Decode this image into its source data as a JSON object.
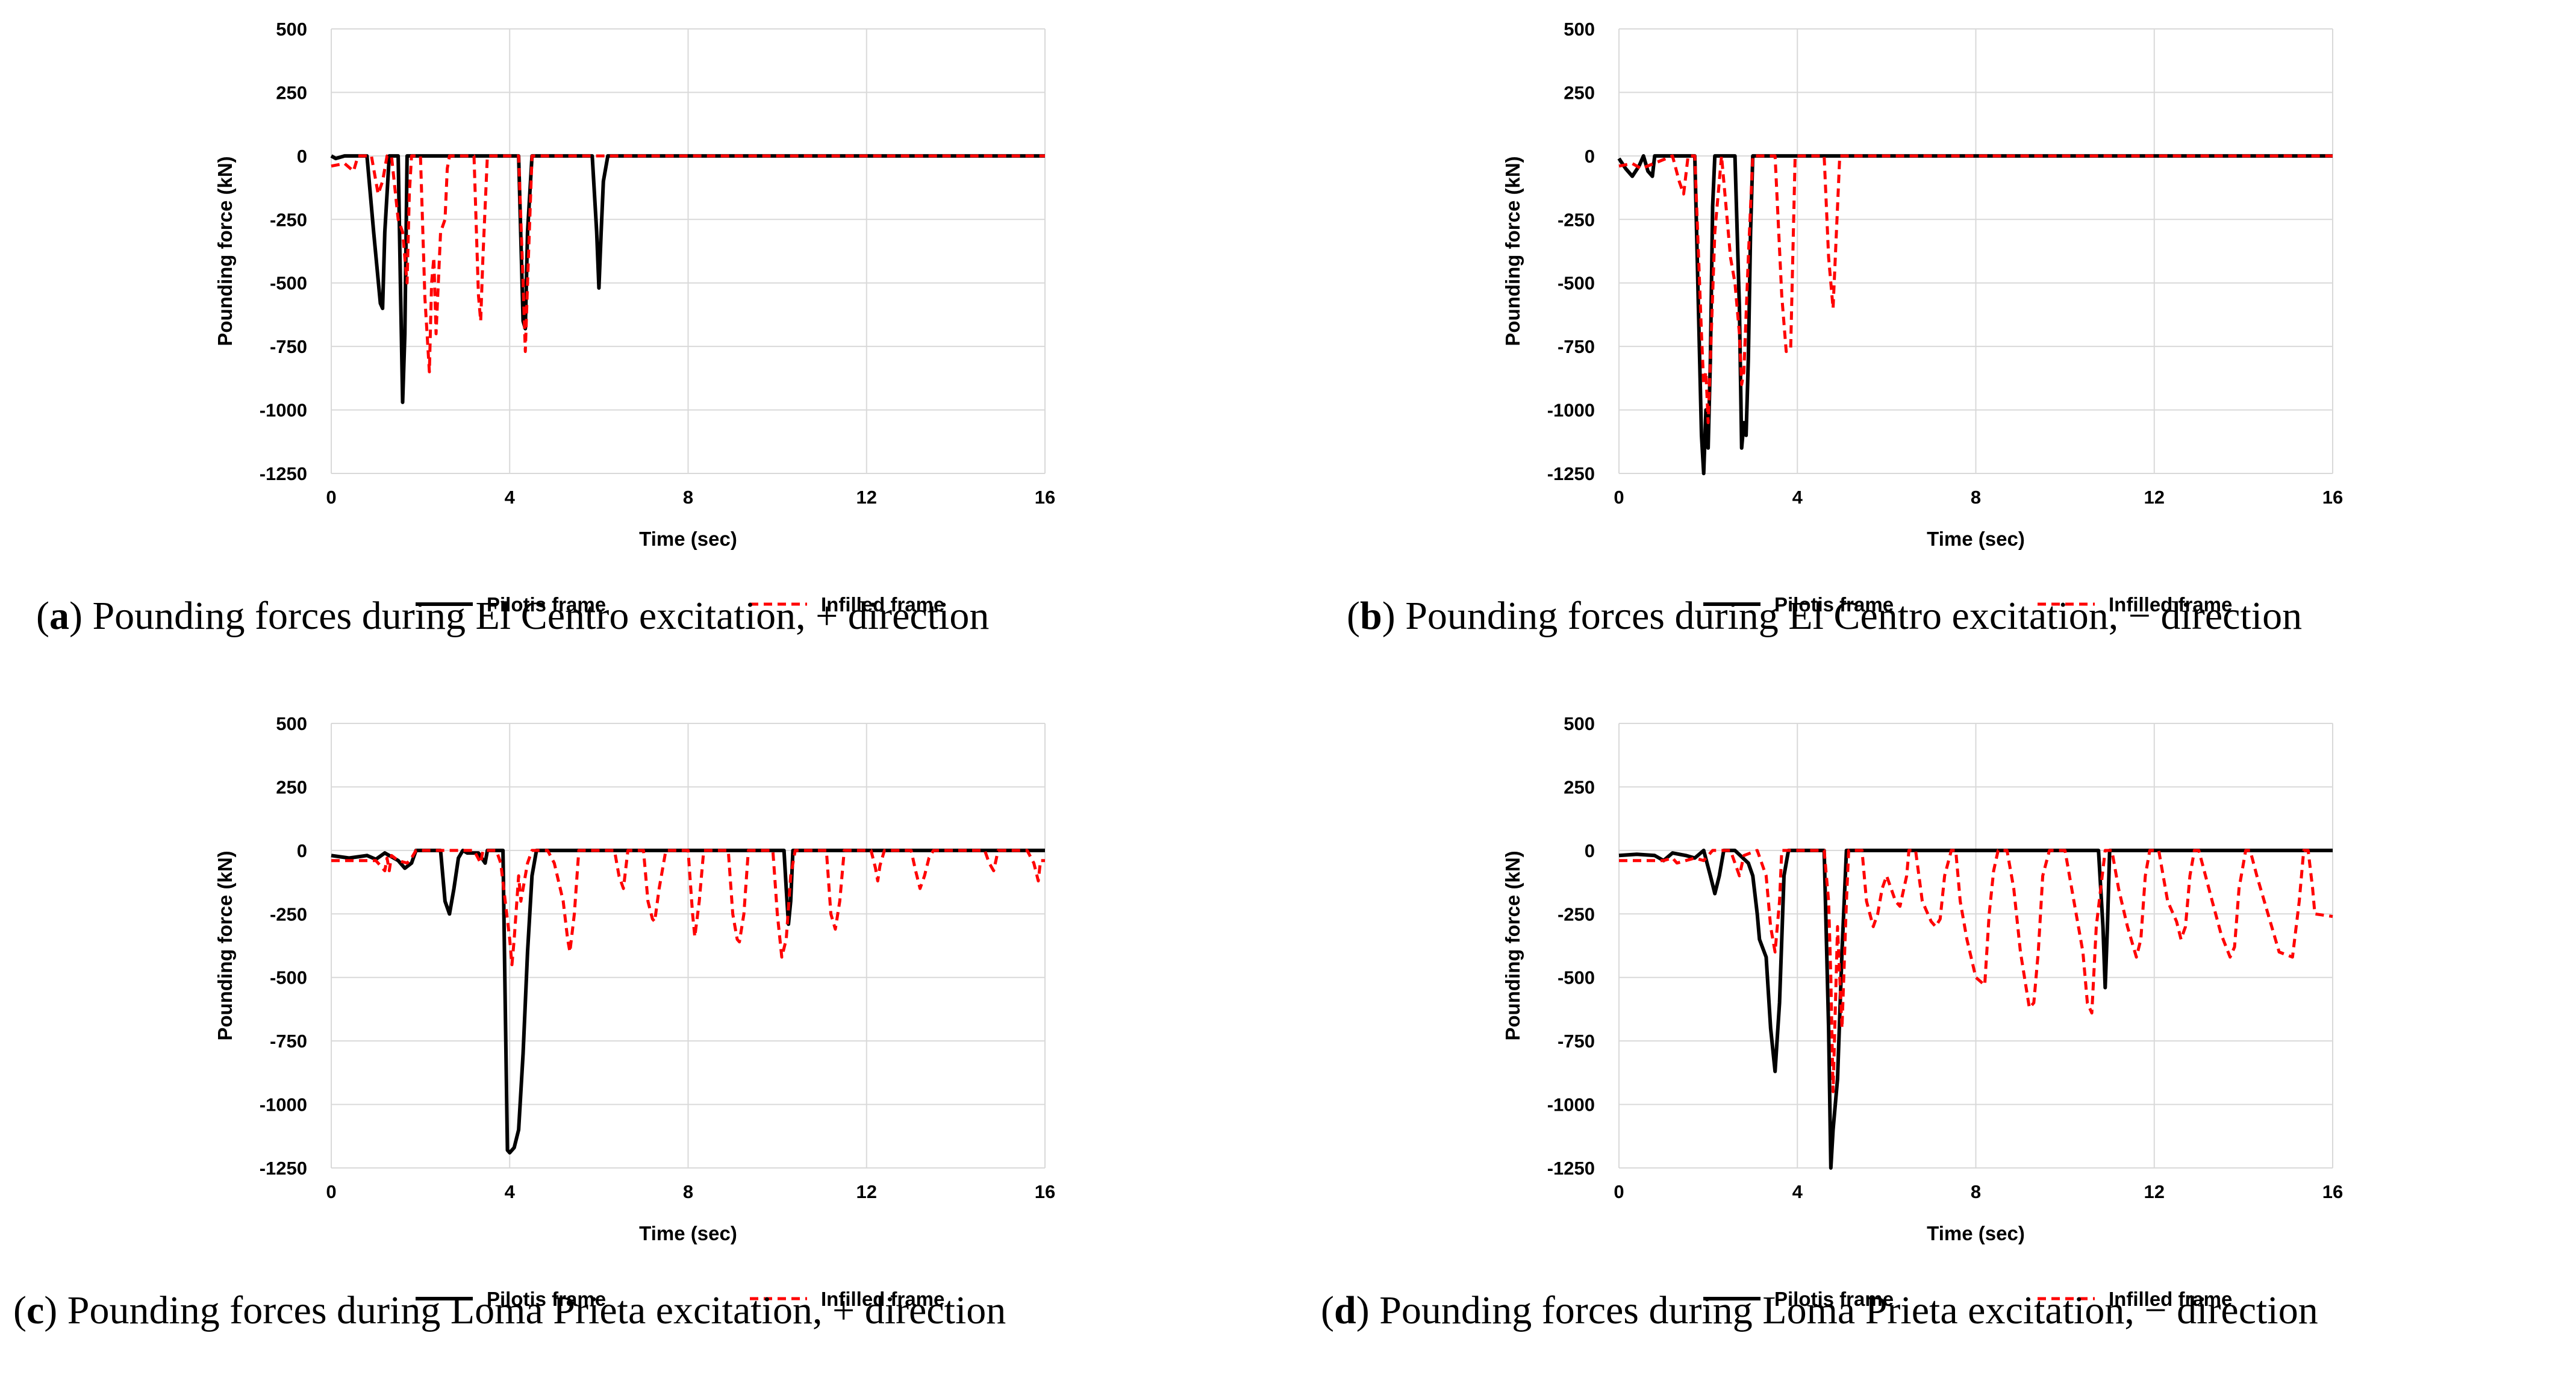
{
  "chart_data": [
    {
      "type": "line",
      "panel_letter": "a",
      "caption_text": " Pounding forces during El Centro excitation, + direction",
      "xlabel": "Time (sec)",
      "ylabel": "Pounding force (kN)",
      "xlim": [
        0,
        16
      ],
      "ylim": [
        -1250,
        500
      ],
      "xticks": [
        0,
        4,
        8,
        12,
        16
      ],
      "yticks": [
        500,
        250,
        0,
        -250,
        -500,
        -750,
        -1000,
        -1250
      ],
      "grid": true,
      "legend_position": "bottom",
      "series": [
        {
          "name": "Pilotis frame",
          "color": "#000000",
          "style": "solid",
          "x": [
            0,
            0.1,
            0.3,
            0.8,
            0.95,
            1.1,
            1.15,
            1.2,
            1.3,
            1.5,
            1.55,
            1.6,
            1.65,
            1.7,
            2.0,
            4.2,
            4.3,
            4.35,
            4.4,
            4.5,
            5.85,
            5.95,
            6.0,
            6.05,
            6.1,
            6.2,
            16
          ],
          "y": [
            0,
            -10,
            0,
            0,
            -300,
            -580,
            -600,
            -300,
            0,
            0,
            -500,
            -970,
            -700,
            0,
            0,
            0,
            -650,
            -680,
            -300,
            0,
            0,
            -300,
            -520,
            -300,
            -100,
            0,
            0
          ]
        },
        {
          "name": "Infilled frame",
          "color": "#ff0000",
          "style": "dashed",
          "x": [
            0,
            0.3,
            0.5,
            0.6,
            0.9,
            1.05,
            1.15,
            1.25,
            1.35,
            1.5,
            1.6,
            1.7,
            1.75,
            1.8,
            2.0,
            2.1,
            2.2,
            2.25,
            2.3,
            2.35,
            2.45,
            2.55,
            2.6,
            2.65,
            3.2,
            3.3,
            3.35,
            3.4,
            3.5,
            4.2,
            4.3,
            4.35,
            4.4,
            4.5,
            16
          ],
          "y": [
            -40,
            -30,
            -60,
            0,
            0,
            -150,
            -100,
            0,
            0,
            -250,
            -300,
            -500,
            -150,
            0,
            0,
            -560,
            -850,
            -500,
            -400,
            -700,
            -300,
            -250,
            -50,
            0,
            0,
            -550,
            -650,
            -400,
            0,
            0,
            -500,
            -770,
            -500,
            0,
            0
          ]
        }
      ]
    },
    {
      "type": "line",
      "panel_letter": "b",
      "caption_text": " Pounding forces during El Centro excitation, − direction",
      "xlabel": "Time (sec)",
      "ylabel": "Pounding force (kN)",
      "xlim": [
        0,
        16
      ],
      "ylim": [
        -1250,
        500
      ],
      "xticks": [
        0,
        4,
        8,
        12,
        16
      ],
      "yticks": [
        500,
        250,
        0,
        -250,
        -500,
        -750,
        -1000,
        -1250
      ],
      "grid": true,
      "legend_position": "bottom",
      "series": [
        {
          "name": "Pilotis frame",
          "color": "#000000",
          "style": "solid",
          "x": [
            0,
            0.15,
            0.3,
            0.45,
            0.55,
            0.65,
            0.75,
            0.8,
            1.7,
            1.85,
            1.9,
            1.95,
            2.0,
            2.05,
            2.1,
            2.15,
            2.2,
            2.6,
            2.7,
            2.75,
            2.8,
            2.85,
            2.9,
            2.95,
            3.0,
            16
          ],
          "y": [
            -10,
            -50,
            -80,
            -40,
            0,
            -60,
            -80,
            0,
            0,
            -1100,
            -1250,
            -1000,
            -1150,
            -800,
            -200,
            0,
            0,
            0,
            -600,
            -1150,
            -1050,
            -1100,
            -800,
            -300,
            0,
            0
          ]
        },
        {
          "name": "Infilled frame",
          "color": "#ff0000",
          "style": "dashed",
          "x": [
            0,
            0.3,
            0.5,
            1.2,
            1.35,
            1.45,
            1.55,
            1.7,
            1.85,
            1.9,
            1.95,
            2.0,
            2.05,
            2.15,
            2.3,
            2.4,
            2.5,
            2.6,
            2.7,
            2.75,
            2.8,
            2.9,
            3.0,
            3.5,
            3.65,
            3.75,
            3.85,
            3.95,
            4.6,
            4.7,
            4.8,
            4.85,
            4.95,
            16
          ],
          "y": [
            -40,
            -30,
            -50,
            0,
            -100,
            -150,
            0,
            0,
            -700,
            -900,
            -850,
            -1050,
            -800,
            -300,
            0,
            -200,
            -400,
            -500,
            -700,
            -900,
            -850,
            -400,
            0,
            0,
            -550,
            -770,
            -760,
            0,
            0,
            -400,
            -600,
            -400,
            0,
            0
          ]
        }
      ]
    },
    {
      "type": "line",
      "panel_letter": "c",
      "caption_text": " Pounding forces during Loma Prieta excitation, + direction",
      "xlabel": "Time (sec)",
      "ylabel": "Pounding force (kN)",
      "xlim": [
        0,
        16
      ],
      "ylim": [
        -1250,
        500
      ],
      "xticks": [
        0,
        4,
        8,
        12,
        16
      ],
      "yticks": [
        500,
        250,
        0,
        -250,
        -500,
        -750,
        -1000,
        -1250
      ],
      "grid": true,
      "legend_position": "bottom",
      "series": [
        {
          "name": "Pilotis frame",
          "color": "#000000",
          "style": "solid",
          "x": [
            0,
            0.4,
            0.8,
            1.0,
            1.2,
            1.5,
            1.65,
            1.8,
            1.9,
            2.45,
            2.55,
            2.65,
            2.75,
            2.85,
            2.95,
            3.05,
            3.3,
            3.45,
            3.5,
            3.85,
            3.9,
            3.95,
            4.0,
            4.1,
            4.2,
            4.3,
            4.4,
            4.5,
            4.6,
            10.15,
            10.2,
            10.25,
            10.3,
            10.35,
            16
          ],
          "y": [
            -20,
            -30,
            -20,
            -35,
            -10,
            -40,
            -70,
            -50,
            0,
            0,
            -200,
            -250,
            -150,
            -30,
            0,
            -10,
            -10,
            -50,
            0,
            0,
            -600,
            -1180,
            -1190,
            -1170,
            -1100,
            -800,
            -400,
            -100,
            0,
            0,
            -150,
            -290,
            -200,
            0,
            0
          ]
        },
        {
          "name": "Infilled frame",
          "color": "#ff0000",
          "style": "dashed",
          "x": [
            0,
            1.0,
            1.2,
            1.25,
            1.3,
            1.35,
            1.5,
            1.7,
            1.8,
            1.9,
            2.0,
            2.5,
            3.2,
            3.35,
            3.4,
            3.7,
            3.8,
            4.0,
            4.05,
            4.1,
            4.2,
            4.25,
            4.3,
            4.4,
            4.5,
            4.85,
            5.0,
            5.2,
            5.3,
            5.35,
            5.45,
            5.55,
            6.35,
            6.45,
            6.55,
            6.65,
            7.0,
            7.1,
            7.2,
            7.25,
            7.35,
            7.5,
            8.0,
            8.1,
            8.15,
            8.25,
            8.35,
            8.9,
            9.0,
            9.1,
            9.15,
            9.25,
            9.35,
            9.9,
            10.0,
            10.1,
            10.2,
            10.3,
            10.4,
            11.1,
            11.2,
            11.3,
            11.4,
            11.5,
            12.1,
            12.2,
            12.25,
            12.3,
            12.4,
            13.0,
            13.1,
            13.2,
            13.3,
            13.4,
            13.5,
            14.65,
            14.75,
            14.85,
            14.95,
            15.6,
            15.75,
            15.85,
            15.9,
            16
          ],
          "y": [
            -40,
            -40,
            -80,
            -30,
            -80,
            -20,
            -40,
            -50,
            -30,
            0,
            0,
            0,
            0,
            -50,
            0,
            0,
            -50,
            -350,
            -450,
            -350,
            -100,
            -200,
            -150,
            -50,
            0,
            0,
            -50,
            -200,
            -350,
            -400,
            -250,
            0,
            0,
            -100,
            -150,
            0,
            0,
            -200,
            -270,
            -280,
            -150,
            0,
            0,
            -250,
            -340,
            -200,
            0,
            0,
            -250,
            -350,
            -360,
            -250,
            0,
            0,
            -250,
            -420,
            -350,
            -100,
            0,
            0,
            -250,
            -310,
            -200,
            0,
            0,
            -70,
            -120,
            -60,
            0,
            0,
            -80,
            -150,
            -100,
            -30,
            0,
            0,
            -50,
            -80,
            0,
            0,
            -50,
            -120,
            -40,
            -40
          ]
        }
      ]
    },
    {
      "type": "line",
      "panel_letter": "d",
      "caption_text": " Pounding forces during Loma Prieta excitation, − direction",
      "xlabel": "Time (sec)",
      "ylabel": "Pounding force (kN)",
      "xlim": [
        0,
        16
      ],
      "ylim": [
        -1250,
        500
      ],
      "xticks": [
        0,
        4,
        8,
        12,
        16
      ],
      "yticks": [
        500,
        250,
        0,
        -250,
        -500,
        -750,
        -1000,
        -1250
      ],
      "grid": true,
      "legend_position": "bottom",
      "series": [
        {
          "name": "Pilotis frame",
          "color": "#000000",
          "style": "solid",
          "x": [
            0,
            0.4,
            0.8,
            1.0,
            1.2,
            1.5,
            1.7,
            1.9,
            2.05,
            2.15,
            2.25,
            2.35,
            2.6,
            2.9,
            3.0,
            3.1,
            3.15,
            3.3,
            3.4,
            3.5,
            3.6,
            3.7,
            3.8,
            4.6,
            4.7,
            4.75,
            4.8,
            4.9,
            5.0,
            5.1,
            10.75,
            10.85,
            10.9,
            10.95,
            11.0,
            16
          ],
          "y": [
            -20,
            -15,
            -20,
            -40,
            -10,
            -20,
            -30,
            0,
            -100,
            -170,
            -100,
            0,
            0,
            -50,
            -100,
            -250,
            -350,
            -420,
            -700,
            -870,
            -600,
            -100,
            0,
            0,
            -700,
            -1250,
            -1100,
            -900,
            -400,
            0,
            0,
            -300,
            -540,
            -300,
            0,
            0
          ]
        },
        {
          "name": "Infilled frame",
          "color": "#ff0000",
          "style": "dashed",
          "x": [
            0,
            1.0,
            1.2,
            1.3,
            1.5,
            1.7,
            1.9,
            2.1,
            2.5,
            2.7,
            2.8,
            3.1,
            3.3,
            3.4,
            3.5,
            3.6,
            3.65,
            4.6,
            4.7,
            4.75,
            4.8,
            4.9,
            5.0,
            5.1,
            5.15,
            5.45,
            5.55,
            5.7,
            5.8,
            5.9,
            6.0,
            6.1,
            6.2,
            6.3,
            6.45,
            6.5,
            6.65,
            6.8,
            7.0,
            7.1,
            7.2,
            7.3,
            7.45,
            7.55,
            7.65,
            7.8,
            8.0,
            8.2,
            8.3,
            8.4,
            8.5,
            8.7,
            8.85,
            9.0,
            9.2,
            9.3,
            9.4,
            9.5,
            9.65,
            10.0,
            10.2,
            10.4,
            10.5,
            10.6,
            10.7,
            10.9,
            11.05,
            11.2,
            11.4,
            11.6,
            11.7,
            11.8,
            11.9,
            12.1,
            12.3,
            12.5,
            12.6,
            12.7,
            12.8,
            12.9,
            13.0,
            13.3,
            13.5,
            13.7,
            13.8,
            13.9,
            14.05,
            14.15,
            14.3,
            14.6,
            14.8,
            15.1,
            15.25,
            15.35,
            15.45,
            15.55,
            15.6,
            16
          ],
          "y": [
            -40,
            -40,
            -30,
            -50,
            -40,
            -30,
            -40,
            0,
            0,
            -100,
            -20,
            0,
            -100,
            -300,
            -400,
            -200,
            0,
            0,
            -200,
            -500,
            -950,
            -300,
            -700,
            -200,
            0,
            0,
            -200,
            -300,
            -250,
            -150,
            -100,
            -150,
            -200,
            -220,
            -100,
            0,
            0,
            -200,
            -280,
            -300,
            -270,
            -100,
            0,
            0,
            -200,
            -350,
            -500,
            -530,
            -250,
            -80,
            0,
            0,
            -150,
            -400,
            -620,
            -600,
            -400,
            -100,
            0,
            0,
            -200,
            -400,
            -600,
            -640,
            -300,
            0,
            0,
            -150,
            -300,
            -420,
            -350,
            -100,
            0,
            0,
            -200,
            -280,
            -350,
            -300,
            -100,
            0,
            0,
            -200,
            -330,
            -420,
            -380,
            -150,
            0,
            0,
            -100,
            -280,
            -400,
            -420,
            -200,
            0,
            0,
            -150,
            -250,
            -260
          ]
        }
      ]
    }
  ]
}
